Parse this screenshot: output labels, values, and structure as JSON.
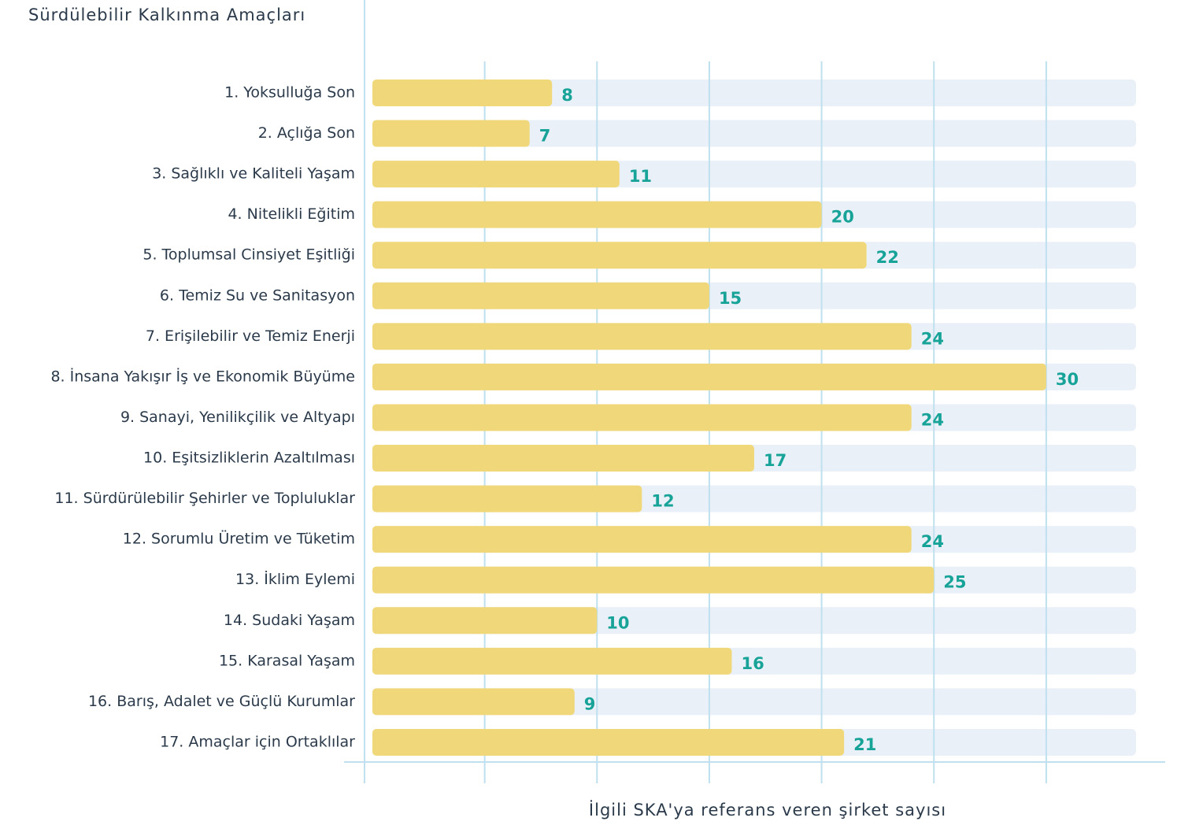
{
  "chart_data": {
    "type": "barh",
    "title": "Sürdülebilir Kalkınma Amaçları",
    "x_label": "İlgili SKA'ya referans veren şirket sayısı",
    "categories": [
      "1. Yoksulluğa Son",
      "2. Açlığa Son",
      "3. Sağlıklı ve Kaliteli Yaşam",
      "4. Nitelikli Eğitim",
      "5. Toplumsal Cinsiyet Eşitliği",
      "6. Temiz Su ve Sanitasyon",
      "7. Erişilebilir ve Temiz Enerji",
      "8. İnsana Yakışır İş ve Ekonomik Büyüme",
      "9. Sanayi, Yenilikçilik ve Altyapı",
      "10. Eşitsizliklerin Azaltılması",
      "11. Sürdürülebilir Şehirler ve Topluluklar",
      "12. Sorumlu Üretim ve Tüketim",
      "13. İklim Eylemi",
      "14. Sudaki Yaşam",
      "15. Karasal Yaşam",
      "16. Barış, Adalet ve Güçlü Kurumlar",
      "17. Amaçlar için Ortaklılar"
    ],
    "values": [
      8,
      7,
      11,
      20,
      22,
      15,
      24,
      30,
      24,
      17,
      12,
      24,
      25,
      10,
      16,
      9,
      21
    ],
    "color": "#f0d87a",
    "track_color": "#eaf0f8",
    "label_color": "#17a398",
    "xlim": [
      0,
      34
    ],
    "xticks": [
      5,
      10,
      15,
      20,
      25,
      30
    ],
    "grid": true
  }
}
